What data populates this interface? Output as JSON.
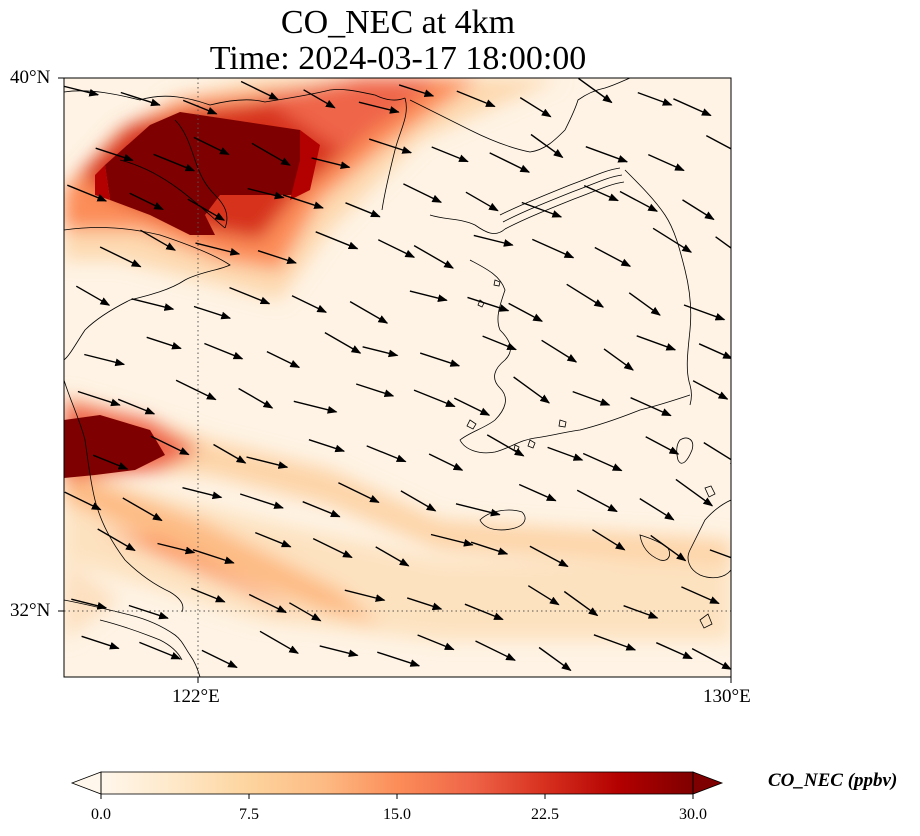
{
  "title": {
    "line1": "CO_NEC at 4km",
    "line2": "Time: 2024-03-17 18:00:00"
  },
  "map": {
    "lat_labels": [
      "40°N",
      "32°N"
    ],
    "lon_labels": [
      "122°E",
      "130°E"
    ],
    "extent": {
      "lon_min": 120,
      "lon_max": 130,
      "lat_min": 31,
      "lat_max": 40
    },
    "gridlines": {
      "lons": [
        122
      ],
      "lats": [
        32
      ],
      "style": "dotted"
    },
    "variable": "CO_NEC",
    "units": "ppbv"
  },
  "colorbar": {
    "label": "CO_NEC (ppbv)",
    "ticks": [
      "0.0",
      "7.5",
      "15.0",
      "22.5",
      "30.0"
    ],
    "min": 0,
    "max": 30,
    "colormap": "OrRd",
    "colors": [
      "#fff7ec",
      "#fee8c8",
      "#fdd49e",
      "#fdbb84",
      "#fc8d59",
      "#ef6548",
      "#d7301f",
      "#b30000",
      "#7f0000"
    ],
    "extend": "both"
  }
}
